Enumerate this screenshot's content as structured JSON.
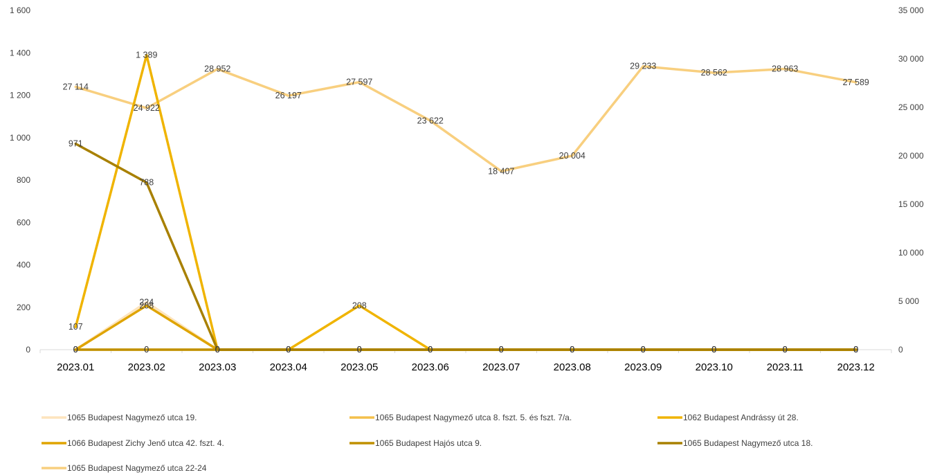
{
  "chart_data": {
    "type": "line",
    "categories": [
      "2023.01",
      "2023.02",
      "2023.03",
      "2023.04",
      "2023.05",
      "2023.06",
      "2023.07",
      "2023.08",
      "2023.09",
      "2023.10",
      "2023.11",
      "2023.12"
    ],
    "y_left": {
      "min": 0,
      "max": 1600,
      "step": 200,
      "tick_labels": [
        "0",
        "200",
        "400",
        "600",
        "800",
        "1 000",
        "1 200",
        "1 400",
        "1 600"
      ]
    },
    "y_right": {
      "min": 0,
      "max": 35000,
      "step": 5000,
      "tick_labels": [
        "0",
        "5 000",
        "10 000",
        "15 000",
        "20 000",
        "25 000",
        "30 000",
        "35 000"
      ]
    },
    "grid": false,
    "legend_position": "bottom",
    "series": [
      {
        "name": "1065 Budapest Nagymező utca 19.",
        "axis": "left",
        "color": "#fde4bd",
        "values": [
          0,
          224,
          0,
          0,
          0,
          0,
          0,
          0,
          0,
          0,
          0,
          0
        ],
        "labels": [
          "0",
          "224",
          "0",
          "0",
          "0",
          "0",
          "0",
          "0",
          "0",
          "0",
          "0",
          "0"
        ]
      },
      {
        "name": "1065 Budapest Nagymező utca 8. fszt. 5. és fszt. 7/a.",
        "axis": "left",
        "color": "#f4c04b",
        "values": [
          0,
          0,
          0,
          0,
          0,
          0,
          0,
          0,
          0,
          0,
          0,
          0
        ],
        "labels": [
          "0",
          "0",
          "0",
          "0",
          "0",
          "0",
          "0",
          "0",
          "0",
          "0",
          "0",
          "0"
        ]
      },
      {
        "name": "1062 Budapest Andrássy út 28.",
        "axis": "left",
        "color": "#f0b400",
        "values": [
          107,
          1389,
          0,
          0,
          208,
          0,
          0,
          0,
          0,
          0,
          0,
          0
        ],
        "labels": [
          "107",
          "1 389",
          "0",
          "0",
          "208",
          "0",
          "0",
          "0",
          "0",
          "0",
          "0",
          "0"
        ]
      },
      {
        "name": "1066 Budapest Zichy Jenő utca 42. fszt. 4.",
        "axis": "left",
        "color": "#dfa400",
        "values": [
          0,
          208,
          0,
          0,
          0,
          0,
          0,
          0,
          0,
          0,
          0,
          0
        ],
        "labels": [
          "0",
          "208",
          "0",
          "0",
          "0",
          "0",
          "0",
          "0",
          "0",
          "0",
          "0",
          "0"
        ]
      },
      {
        "name": "1065 Budapest Hajós utca 9.",
        "axis": "left",
        "color": "#c09000",
        "values": [
          0,
          0,
          0,
          0,
          0,
          0,
          0,
          0,
          0,
          0,
          0,
          0
        ],
        "labels": [
          "0",
          "0",
          "0",
          "0",
          "0",
          "0",
          "0",
          "0",
          "0",
          "0",
          "0",
          "0"
        ]
      },
      {
        "name": "1065 Budapest Nagymező utca 18.",
        "axis": "left",
        "color": "#a88000",
        "values": [
          971,
          788,
          0,
          0,
          0,
          0,
          0,
          0,
          0,
          0,
          0,
          0
        ],
        "labels": [
          "971",
          "788",
          "0",
          "0",
          "0",
          "0",
          "0",
          "0",
          "0",
          "0",
          "0",
          "0"
        ]
      },
      {
        "name": "1065 Budapest Nagymező utca 22-24",
        "axis": "right",
        "color": "#f8cf7f",
        "values": [
          27114,
          24922,
          28952,
          26197,
          27597,
          23622,
          18407,
          20004,
          29233,
          28562,
          28963,
          27589
        ],
        "labels": [
          "27 114",
          "24 922",
          "28 952",
          "26 197",
          "27 597",
          "23 622",
          "18 407",
          "20 004",
          "29 233",
          "28 562",
          "28 963",
          "27 589"
        ]
      }
    ]
  }
}
